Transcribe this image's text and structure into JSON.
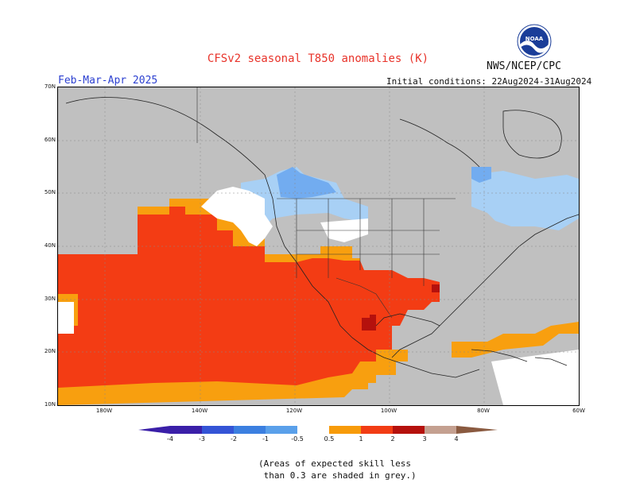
{
  "header": {
    "title": "CFSv2 seasonal T850 anomalies (K)",
    "agency": "NWS/NCEP/CPC",
    "logo_text": "NOAA",
    "season": "Feb-Mar-Apr 2025",
    "initial_conditions": "Initial conditions: 22Aug2024-31Aug2024"
  },
  "map": {
    "lat_labels": [
      "70N",
      "60N",
      "50N",
      "40N",
      "30N",
      "20N",
      "10N"
    ],
    "lon_labels": [
      "180W",
      "140W",
      "120W",
      "100W",
      "80W",
      "60W"
    ],
    "extent": {
      "lon_min": -170,
      "lon_max": -60,
      "lat_min": 10,
      "lat_max": 70
    },
    "grey_note": "unskilled areas shaded grey"
  },
  "colorbar": {
    "labels": [
      "-4",
      "-3",
      "-2",
      "-1",
      "-0.5",
      "0.5",
      "1",
      "2",
      "3",
      "4"
    ],
    "colors": [
      "#3a1fa8",
      "#3454d6",
      "#3b7fe0",
      "#5aa0ea",
      "#8cc4f0",
      "#ffffff",
      "#f79b0a",
      "#f23c14",
      "#b5110d",
      "#7a0d08",
      "#c4a090",
      "#8a5a40"
    ]
  },
  "legend_colors": {
    "grey": "#c0c0c0",
    "neg_light": "#a8d0f5",
    "neg_med": "#72acf0",
    "pos_light": "#f89f0f",
    "pos_med": "#f33c14",
    "pos_dark": "#b5110d"
  },
  "note": {
    "line1": "(Areas of expected skill less",
    "line2": " than 0.3 are shaded in grey.)"
  }
}
